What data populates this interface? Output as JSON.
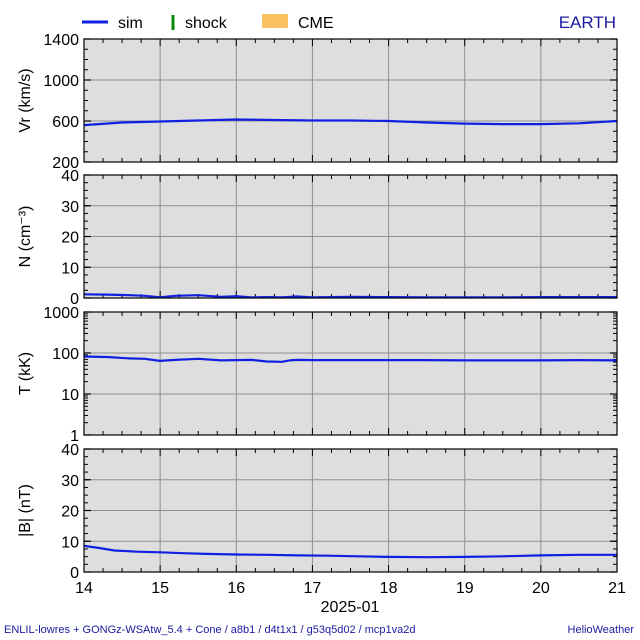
{
  "legend": {
    "sim": "sim",
    "shock": "shock",
    "cme": "CME",
    "location": "EARTH"
  },
  "colors": {
    "sim": "#1020e0",
    "shock": "#0a8a0a",
    "cme": "#f8c060",
    "location": "#1a1aa0",
    "footer": "#1a1aa0",
    "panel_bg": "#dedede",
    "grid": "#909090"
  },
  "footer": {
    "left": "ENLIL-lowres + GONGz-WSAtw_5.4 + Cone / a8b1 / d4t1x1 / g53q5d02 / mcp1va2d",
    "right": "HelioWeather"
  },
  "chart_data": [
    {
      "type": "line",
      "ylabel": "Vr (km/s)",
      "ylim": [
        200,
        1400
      ],
      "yscale": "linear",
      "yticks": [
        200,
        600,
        1000,
        1400
      ],
      "grid": true,
      "series": [
        {
          "name": "sim",
          "x": [
            14,
            14.5,
            15,
            15.5,
            16,
            16.5,
            17,
            17.5,
            18,
            18.5,
            19,
            19.5,
            20,
            20.5,
            21
          ],
          "values": [
            560,
            585,
            595,
            605,
            615,
            610,
            605,
            605,
            600,
            585,
            575,
            570,
            570,
            578,
            600
          ]
        }
      ]
    },
    {
      "type": "line",
      "ylabel": "N (cm⁻³)",
      "ylim": [
        0,
        40
      ],
      "yscale": "linear",
      "yticks": [
        0,
        10,
        20,
        30,
        40
      ],
      "grid": true,
      "series": [
        {
          "name": "sim",
          "x": [
            14,
            14.3,
            14.6,
            14.8,
            15,
            15.2,
            15.5,
            15.8,
            16,
            16.2,
            16.4,
            16.6,
            16.8,
            17,
            17.5,
            18,
            18.5,
            19,
            19.5,
            20,
            20.5,
            21
          ],
          "values": [
            1.2,
            1.1,
            0.9,
            0.7,
            0.2,
            0.7,
            0.9,
            0.4,
            0.6,
            0.2,
            0.3,
            0.2,
            0.5,
            0.2,
            0.4,
            0.3,
            0.2,
            0.2,
            0.2,
            0.3,
            0.3,
            0.3
          ]
        }
      ]
    },
    {
      "type": "line",
      "ylabel": "T (kK)",
      "ylim": [
        1,
        1000
      ],
      "yscale": "log",
      "yticks": [
        1,
        10,
        100,
        1000
      ],
      "grid": true,
      "series": [
        {
          "name": "sim",
          "x": [
            14,
            14.3,
            14.6,
            14.8,
            15,
            15.2,
            15.5,
            15.8,
            16,
            16.2,
            16.4,
            16.6,
            16.7,
            16.8,
            17,
            17.5,
            18,
            18.5,
            19,
            19.5,
            20,
            20.5,
            21
          ],
          "values": [
            82,
            80,
            74,
            72,
            64,
            68,
            72,
            66,
            67,
            68,
            62,
            61,
            66,
            68,
            67,
            67,
            67,
            67,
            66,
            66,
            66,
            67,
            66
          ]
        }
      ]
    },
    {
      "type": "line",
      "ylabel": "|B| (nT)",
      "ylim": [
        0,
        40
      ],
      "yscale": "linear",
      "yticks": [
        0,
        10,
        20,
        30,
        40
      ],
      "grid": true,
      "xlabel": "2025-01",
      "xticks": [
        "14",
        "15",
        "16",
        "17",
        "18",
        "19",
        "20",
        "21"
      ],
      "series": [
        {
          "name": "sim",
          "x": [
            14,
            14.2,
            14.4,
            14.7,
            15,
            15.3,
            15.6,
            16,
            16.4,
            16.8,
            17.2,
            17.6,
            18,
            18.5,
            19,
            19.5,
            20,
            20.5,
            21
          ],
          "values": [
            8.5,
            7.8,
            7.0,
            6.6,
            6.4,
            6.1,
            5.9,
            5.7,
            5.6,
            5.4,
            5.3,
            5.1,
            4.9,
            4.8,
            4.9,
            5.1,
            5.4,
            5.6,
            5.6
          ]
        }
      ]
    }
  ]
}
